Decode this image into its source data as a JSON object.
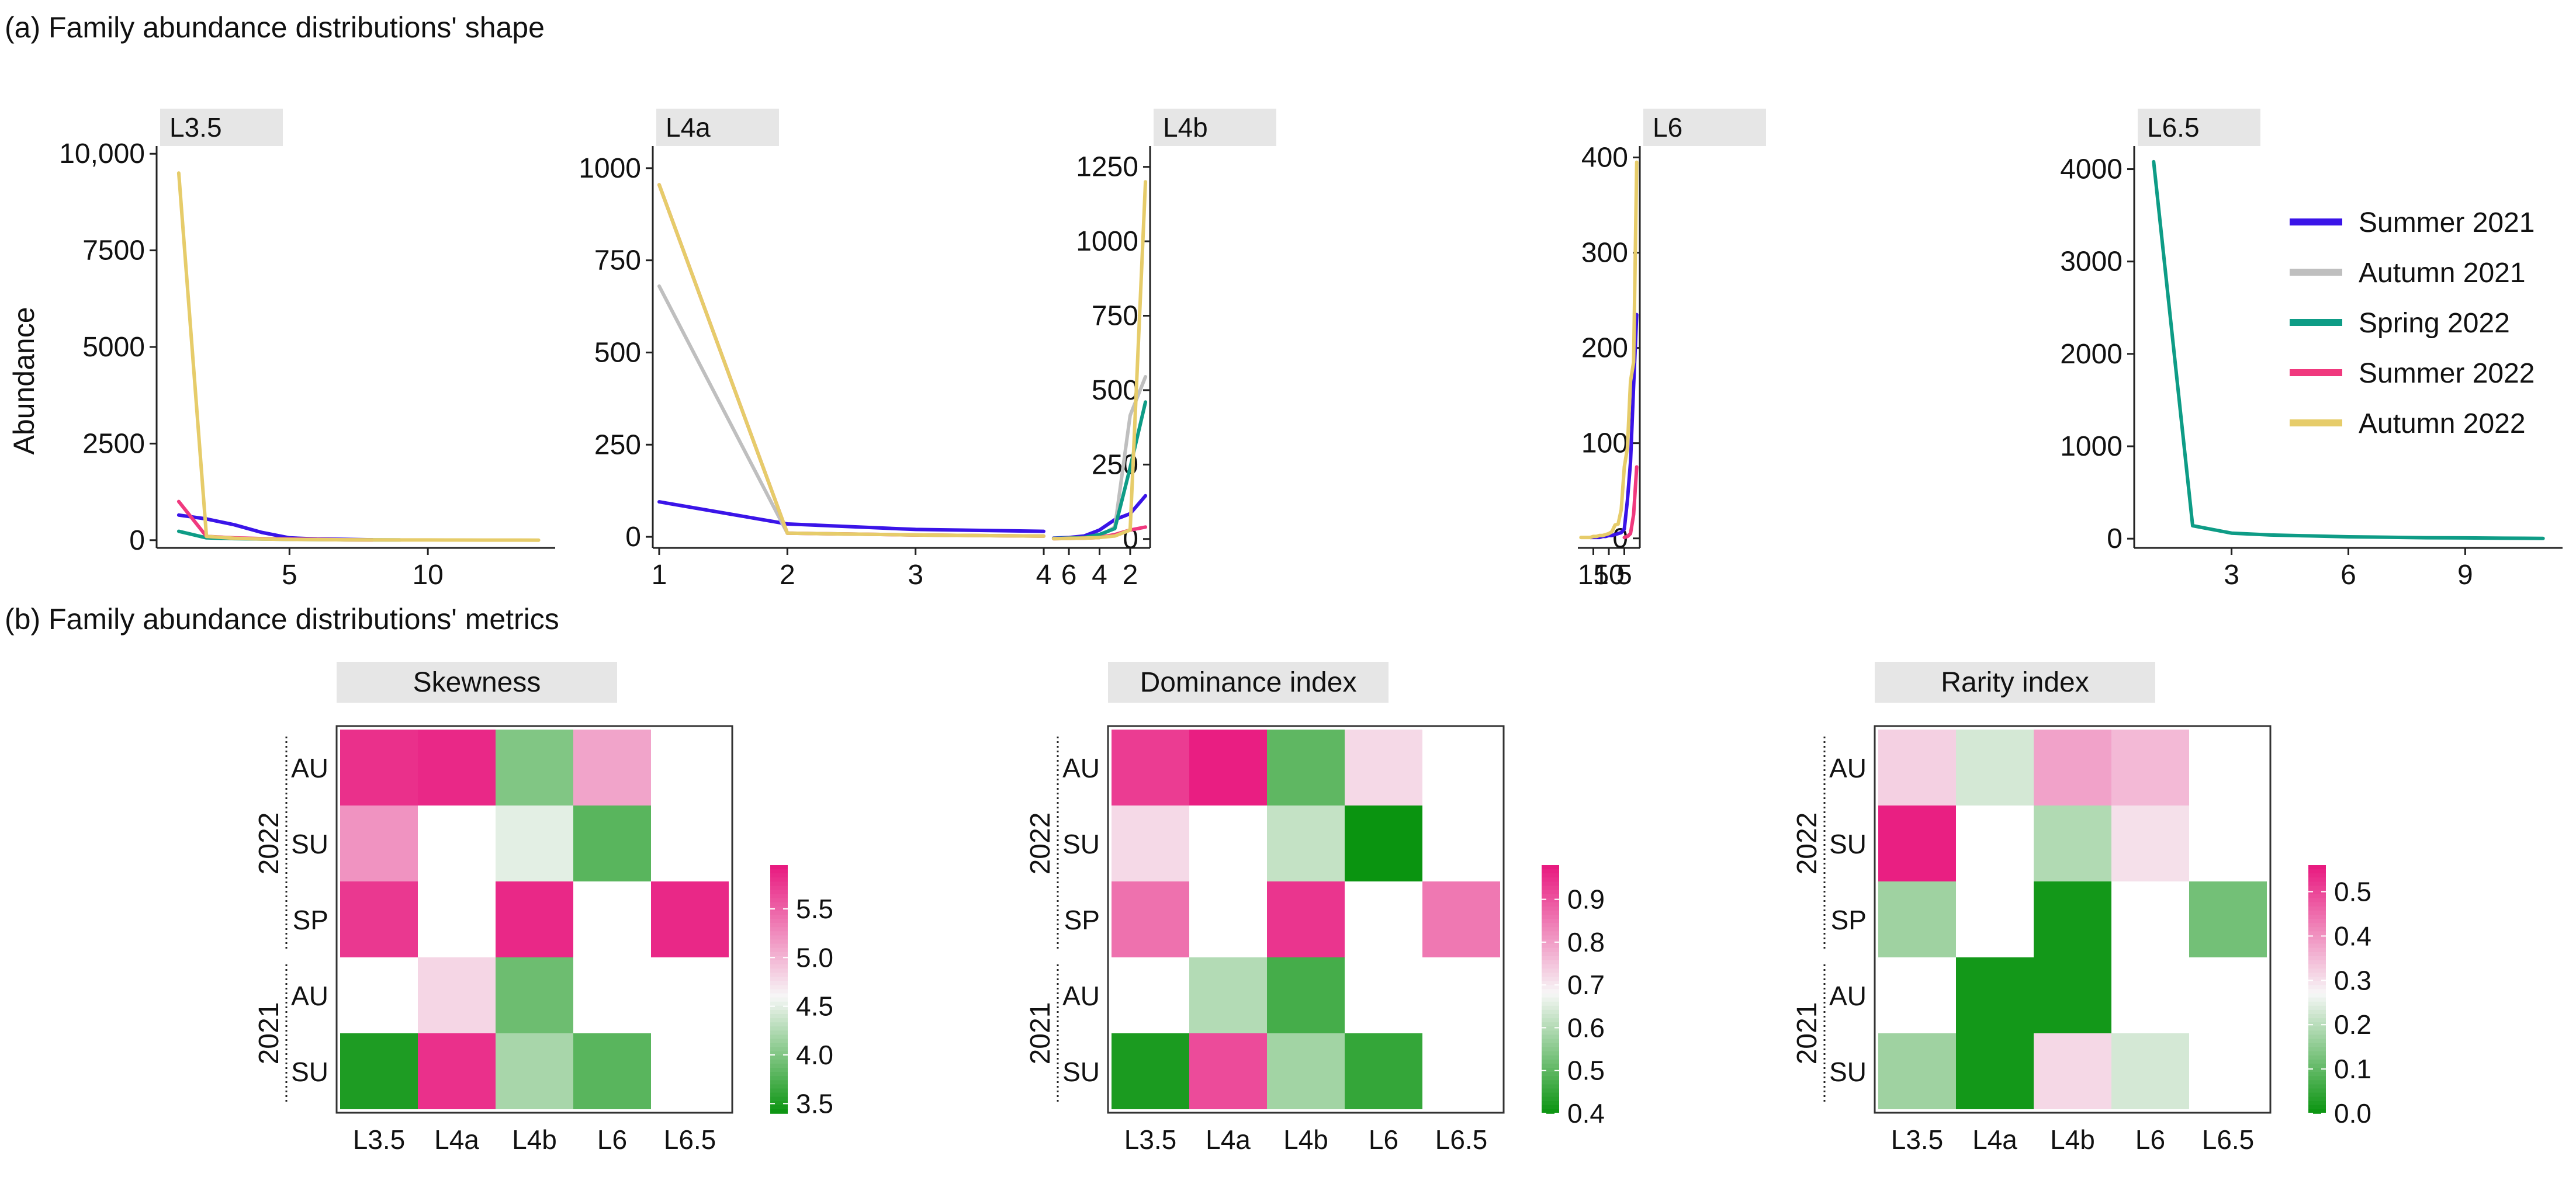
{
  "section_titles": {
    "a": "(a) Family abundance distributions' shape",
    "b": "(b) Family abundance distributions' metrics"
  },
  "chart_data": [
    {
      "type": "line",
      "panel": "a",
      "ylabel": "Abundance",
      "legend": {
        "placement": "right",
        "entries": [
          {
            "name": "Summer 2021",
            "color": "#3a14e8"
          },
          {
            "name": "Autumn 2021",
            "color": "#bfbfbf"
          },
          {
            "name": "Spring 2022",
            "color": "#0e9c86"
          },
          {
            "name": "Summer 2022",
            "color": "#f0397e"
          },
          {
            "name": "Autumn 2022",
            "color": "#e6cc6a"
          }
        ]
      },
      "facets": [
        {
          "title": "L3.5",
          "xlim": [
            0.2,
            14.6
          ],
          "xticks": [
            5,
            10
          ],
          "ylim": [
            -200,
            10200
          ],
          "yticks": [
            0,
            2500,
            5000,
            7500,
            10000
          ],
          "ytick_labels": [
            "0",
            "2500",
            "5000",
            "7500",
            "10,000"
          ],
          "series": [
            {
              "name": "Summer 2021",
              "x": [
                1,
                2,
                3,
                4,
                5,
                6,
                7,
                8
              ],
              "y": [
                650,
                550,
                400,
                200,
                60,
                30,
                20,
                10
              ]
            },
            {
              "name": "Spring 2022",
              "x": [
                1,
                2,
                3,
                4,
                5,
                6,
                7,
                8,
                9
              ],
              "y": [
                230,
                60,
                40,
                30,
                20,
                15,
                10,
                8,
                5
              ]
            },
            {
              "name": "Summer 2022",
              "x": [
                1,
                2,
                3,
                4,
                5,
                6,
                7,
                8
              ],
              "y": [
                1000,
                100,
                60,
                40,
                30,
                20,
                10,
                5
              ]
            },
            {
              "name": "Autumn 2022",
              "x": [
                1,
                2,
                3,
                4,
                5,
                6,
                7,
                8,
                9,
                10,
                11,
                12,
                13,
                14
              ],
              "y": [
                9500,
                100,
                50,
                30,
                20,
                15,
                10,
                8,
                6,
                5,
                4,
                3,
                2,
                1
              ]
            }
          ]
        },
        {
          "title": "L4a",
          "xlim": [
            0.95,
            4.05
          ],
          "xticks": [
            1,
            2,
            3,
            4
          ],
          "ylim": [
            -30,
            1060
          ],
          "yticks": [
            0,
            250,
            500,
            750,
            1000
          ],
          "ytick_labels": [
            "0",
            "250",
            "500",
            "750",
            "1000"
          ],
          "series": [
            {
              "name": "Summer 2021",
              "x": [
                1,
                2,
                3,
                4
              ],
              "y": [
                95,
                35,
                20,
                15
              ]
            },
            {
              "name": "Autumn 2021",
              "x": [
                1,
                2,
                3,
                4
              ],
              "y": [
                680,
                10,
                5,
                2
              ]
            },
            {
              "name": "Summer 2022",
              "x": [
                1,
                2,
                3,
                4
              ],
              "y": [
                955,
                10,
                5,
                2
              ]
            },
            {
              "name": "Autumn 2022",
              "x": [
                1,
                2,
                3,
                4
              ],
              "y": [
                955,
                10,
                5,
                2
              ]
            }
          ]
        },
        {
          "title": "L4b",
          "xlim": [
            0.7,
            7.3
          ],
          "xticks": [
            2,
            4,
            6
          ],
          "ylim": [
            -30,
            1320
          ],
          "yticks": [
            0,
            250,
            500,
            750,
            1000,
            1250
          ],
          "ytick_labels": [
            "0",
            "250",
            "500",
            "750",
            "1000",
            "1250"
          ],
          "series": [
            {
              "name": "Summer 2021",
              "x": [
                1,
                2,
                3,
                4,
                5,
                6,
                7
              ],
              "y": [
                145,
                85,
                65,
                30,
                10,
                5,
                3
              ]
            },
            {
              "name": "Autumn 2021",
              "x": [
                1,
                2,
                3,
                4,
                5,
                6,
                7
              ],
              "y": [
                545,
                415,
                40,
                10,
                5,
                3,
                2
              ]
            },
            {
              "name": "Spring 2022",
              "x": [
                1,
                2,
                3,
                4,
                5,
                6,
                7
              ],
              "y": [
                460,
                240,
                35,
                15,
                5,
                3,
                2
              ]
            },
            {
              "name": "Summer 2022",
              "x": [
                1,
                2,
                3,
                4,
                5,
                6,
                7
              ],
              "y": [
                40,
                30,
                15,
                5,
                3,
                2,
                1
              ]
            },
            {
              "name": "Autumn 2022",
              "x": [
                1,
                2,
                3,
                4,
                5,
                6,
                7
              ],
              "y": [
                1200,
                30,
                10,
                5,
                3,
                2,
                1
              ]
            }
          ]
        },
        {
          "title": "L6",
          "xlim": [
            0,
            20
          ],
          "xticks": [
            5,
            10,
            15
          ],
          "ylim": [
            -10,
            412
          ],
          "yticks": [
            0,
            100,
            200,
            300,
            400
          ],
          "ytick_labels": [
            "0",
            "100",
            "200",
            "300",
            "400"
          ],
          "series": [
            {
              "name": "Summer 2021",
              "x": [
                1,
                2,
                3,
                4,
                5,
                6,
                7,
                8,
                9,
                10,
                11,
                12,
                13,
                14,
                15,
                16
              ],
              "y": [
                235,
                160,
                80,
                40,
                10,
                6,
                5,
                4,
                3,
                3,
                2,
                2,
                1,
                1,
                1,
                1
              ]
            },
            {
              "name": "Summer 2022",
              "x": [
                1,
                2,
                3,
                4,
                5
              ],
              "y": [
                75,
                25,
                5,
                2,
                1
              ]
            },
            {
              "name": "Autumn 2022",
              "x": [
                1,
                2,
                3,
                4,
                5,
                6,
                7,
                8,
                9,
                10,
                11,
                12,
                13,
                14,
                15,
                16,
                17,
                18,
                19
              ],
              "y": [
                395,
                185,
                165,
                95,
                75,
                30,
                15,
                14,
                7,
                5,
                4,
                3,
                3,
                2,
                2,
                1,
                1,
                1,
                1
              ]
            }
          ]
        },
        {
          "title": "L6.5",
          "xlim": [
            0.5,
            11.5
          ],
          "xticks": [
            3,
            6,
            9
          ],
          "ylim": [
            -100,
            4250
          ],
          "yticks": [
            0,
            1000,
            2000,
            3000,
            4000
          ],
          "ytick_labels": [
            "0",
            "1000",
            "2000",
            "3000",
            "4000"
          ],
          "series": [
            {
              "name": "Spring 2022",
              "x": [
                1,
                2,
                3,
                4,
                5,
                6,
                7,
                8,
                9,
                10,
                11
              ],
              "y": [
                4080,
                140,
                60,
                40,
                30,
                20,
                15,
                10,
                8,
                5,
                3
              ]
            }
          ]
        }
      ]
    },
    {
      "type": "heatmap",
      "panel": "b",
      "columns": [
        "L3.5",
        "L4a",
        "L4b",
        "L6",
        "L6.5"
      ],
      "rows": [
        {
          "label": "AU",
          "year": "2022"
        },
        {
          "label": "SU",
          "year": "2022"
        },
        {
          "label": "SP",
          "year": "2022"
        },
        {
          "label": "AU",
          "year": "2021"
        },
        {
          "label": "SU",
          "year": "2021"
        }
      ],
      "year_groups": [
        {
          "year": "2022",
          "rows": [
            0,
            1,
            2
          ]
        },
        {
          "year": "2021",
          "rows": [
            3,
            4
          ]
        }
      ],
      "color_scale": {
        "low": "#0a9410",
        "mid": "#f7f7f7",
        "high": "#e8177e"
      },
      "panels": [
        {
          "title": "Skewness",
          "range": [
            3.4,
            5.95
          ],
          "mid": 4.6,
          "legend_ticks": [
            3.5,
            4.0,
            4.5,
            5.0,
            5.5
          ],
          "legend_labels": [
            "3.5",
            "4.0",
            "4.5",
            "5.0",
            "5.5"
          ],
          "values": [
            [
              5.8,
              5.85,
              4.0,
              5.1,
              null
            ],
            [
              5.2,
              null,
              4.5,
              3.8,
              null
            ],
            [
              5.75,
              null,
              5.85,
              null,
              5.85
            ],
            [
              null,
              4.8,
              3.9,
              null,
              null
            ],
            [
              3.5,
              5.8,
              4.2,
              3.8,
              null
            ]
          ]
        },
        {
          "title": "Dominance index",
          "range": [
            0.4,
            0.98
          ],
          "mid": 0.68,
          "legend_ticks": [
            0.4,
            0.5,
            0.6,
            0.7,
            0.8,
            0.9
          ],
          "legend_labels": [
            "0.4",
            "0.5",
            "0.6",
            "0.7",
            "0.8",
            "0.9"
          ],
          "values": [
            [
              0.93,
              0.97,
              0.5,
              0.72,
              null
            ],
            [
              0.72,
              null,
              0.62,
              0.4,
              null
            ],
            [
              0.86,
              null,
              0.94,
              null,
              0.85
            ],
            [
              null,
              0.6,
              0.47,
              null,
              null
            ],
            [
              0.42,
              0.91,
              0.58,
              0.45,
              null
            ]
          ]
        },
        {
          "title": "Rarity index",
          "range": [
            0.0,
            0.56
          ],
          "mid": 0.27,
          "legend_ticks": [
            0.0,
            0.1,
            0.2,
            0.3,
            0.4,
            0.5
          ],
          "legend_labels": [
            "0.0",
            "0.1",
            "0.2",
            "0.3",
            "0.4",
            "0.5"
          ],
          "values": [
            [
              0.32,
              0.23,
              0.38,
              0.35,
              null
            ],
            [
              0.55,
              null,
              0.19,
              0.3,
              null
            ],
            [
              0.17,
              null,
              0.01,
              null,
              0.12
            ],
            [
              null,
              0.01,
              0.01,
              null,
              null
            ],
            [
              0.17,
              0.01,
              0.31,
              0.23,
              null
            ]
          ]
        }
      ]
    }
  ]
}
